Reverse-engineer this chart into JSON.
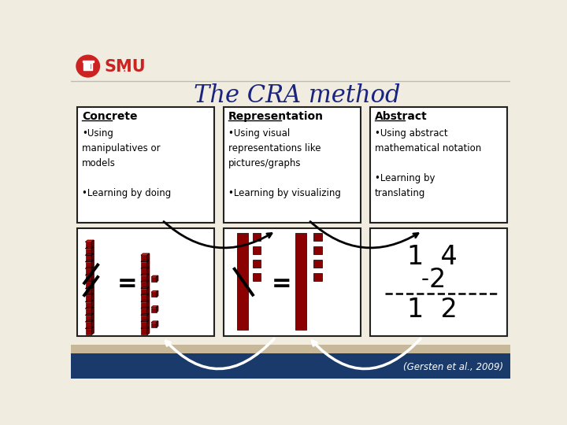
{
  "title": "The CRA method",
  "title_color": "#1a237e",
  "title_fontsize": 22,
  "bg_color": "#f0ece0",
  "box_border_color": "#222222",
  "columns": [
    {
      "header": "Concrete",
      "body": "•Using\nmanipulatives or\nmodels\n\n•Learning by doing"
    },
    {
      "header": "Representation",
      "body": "•Using visual\nrepresentations like\npictures/graphs\n\n•Learning by visualizing"
    },
    {
      "header": "Abstract",
      "body": "•Using abstract\nmathematical notation\n\n•Learning by\ntranslating"
    }
  ],
  "footnote": "(Gersten et al., 2009)",
  "dark_red": "#8b0000",
  "mid_red": "#cc2222",
  "light_red": "#aa1111",
  "bottom_bar_color": "#1a3a6b",
  "tan_color": "#c8b89a",
  "smu_red": "#cc2222"
}
